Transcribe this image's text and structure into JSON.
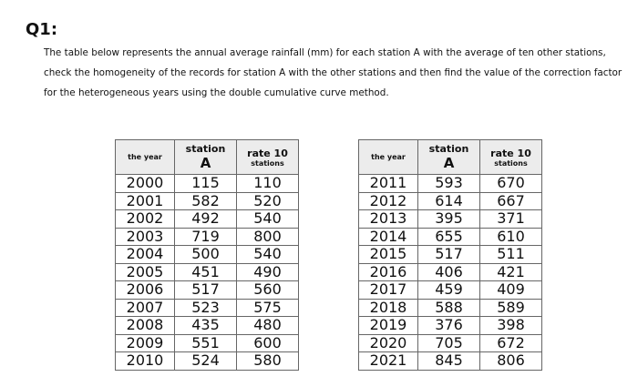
{
  "title": "Q1:",
  "instructions": "The table below represents the annual average rainfall (mm) for each station A with the average of ten other stations, check the homogeneity of the records for station A with the other stations and then find the value of the correction factor for the heterogeneous years using the double cumulative curve method.",
  "tables": [
    {
      "header": {
        "year": "the year",
        "station": [
          "station",
          "A"
        ],
        "rate": [
          "rate 10",
          "stations"
        ]
      },
      "rows": [
        [
          2000,
          115,
          110
        ],
        [
          2001,
          582,
          520
        ],
        [
          2002,
          492,
          540
        ],
        [
          2003,
          719,
          800
        ],
        [
          2004,
          500,
          540
        ],
        [
          2005,
          451,
          490
        ],
        [
          2006,
          517,
          560
        ],
        [
          2007,
          523,
          575
        ],
        [
          2008,
          435,
          480
        ],
        [
          2009,
          551,
          600
        ],
        [
          2010,
          524,
          580
        ]
      ]
    },
    {
      "header": {
        "year": "the year",
        "station": [
          "station",
          "A"
        ],
        "rate": [
          "rate 10",
          "stations"
        ]
      },
      "rows": [
        [
          2011,
          593,
          670
        ],
        [
          2012,
          614,
          667
        ],
        [
          2013,
          395,
          371
        ],
        [
          2014,
          655,
          610
        ],
        [
          2015,
          517,
          511
        ],
        [
          2016,
          406,
          421
        ],
        [
          2017,
          459,
          409
        ],
        [
          2018,
          588,
          589
        ],
        [
          2019,
          376,
          398
        ],
        [
          2020,
          705,
          672
        ],
        [
          2021,
          845,
          806
        ]
      ]
    }
  ]
}
